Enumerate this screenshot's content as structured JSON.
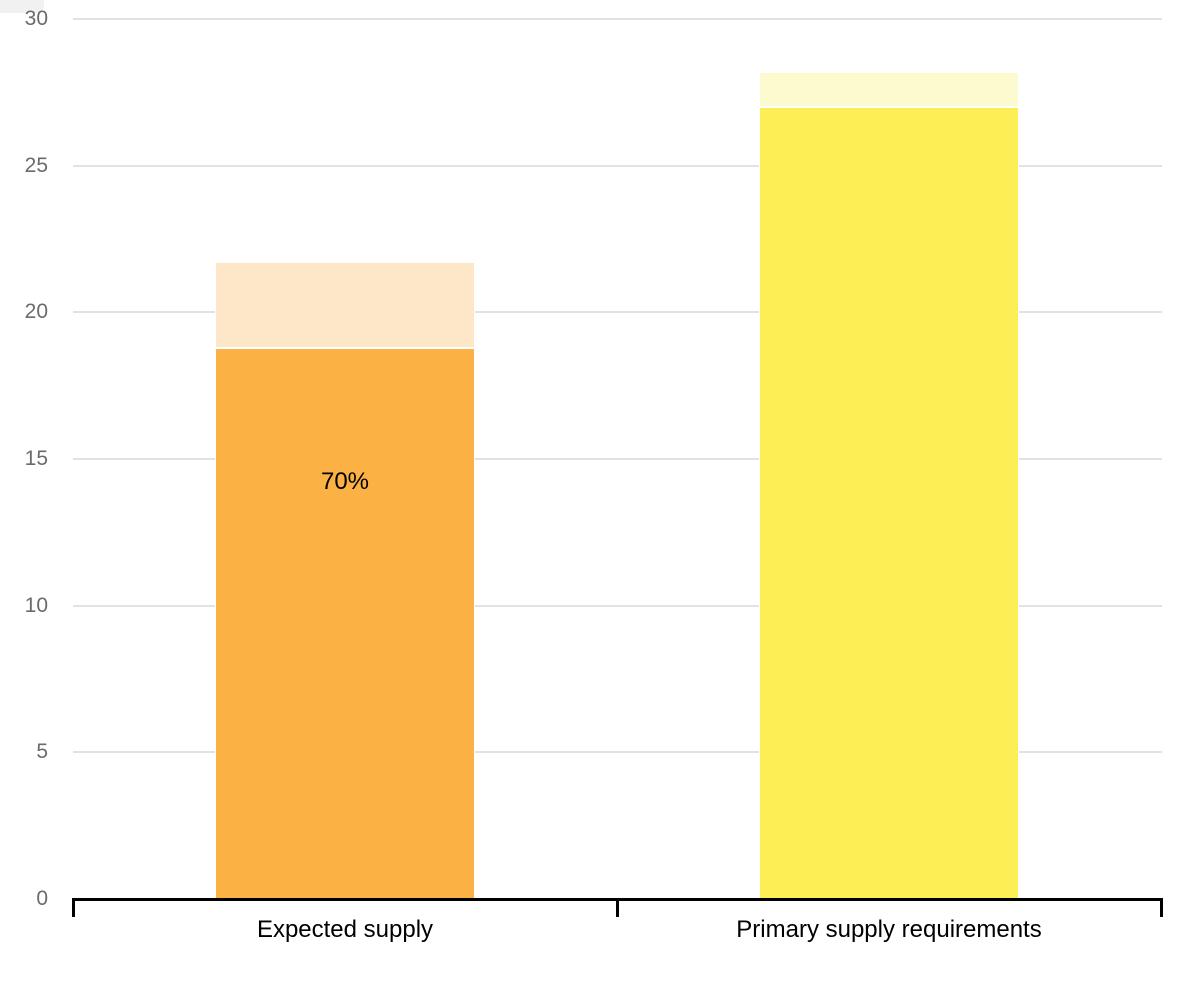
{
  "chart_data": {
    "type": "bar",
    "stacked": true,
    "title": "",
    "xlabel": "",
    "ylabel": "",
    "categories": [
      "Expected supply",
      "Primary supply requirements"
    ],
    "series": [
      {
        "name": "main",
        "values": [
          18.8,
          27.0
        ],
        "colors": [
          "#FBB143",
          "#FDEE55"
        ]
      },
      {
        "name": "top",
        "values": [
          2.9,
          1.2
        ],
        "colors": [
          "#FDE7C8",
          "#FCFACF"
        ]
      }
    ],
    "annotations": [
      {
        "text": "70%",
        "category_index": 0,
        "y_value": 14.2
      }
    ],
    "ylim": [
      0,
      30
    ],
    "yticks": [
      0,
      5,
      10,
      15,
      20,
      25,
      30
    ],
    "grid": true,
    "legend": "none"
  },
  "style": {
    "background": "#FFFFFF",
    "grid_color": "#E2E2E2",
    "tick_label_color": "#6B6B6B",
    "axis_color": "#000000",
    "category_label_color": "#000000",
    "annotation_color": "#000000",
    "segment_border_color": "#FFFFFF",
    "corner_artifact_color": "#F1F1F1"
  }
}
